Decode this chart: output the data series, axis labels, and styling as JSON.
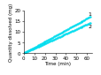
{
  "title": "",
  "xlabel": "Time (min)",
  "ylabel": "Quantity dissolved (mg)",
  "xlim": [
    0,
    65
  ],
  "ylim": [
    0,
    20
  ],
  "xticks": [
    0,
    10,
    20,
    30,
    40,
    50,
    60
  ],
  "yticks": [
    0,
    5,
    10,
    15,
    20
  ],
  "line1_label": "1",
  "line2_label": "2",
  "line1_slope": 0.27,
  "line2_slope": 0.225,
  "line_color": "#00ddee",
  "line_width": 0.7,
  "markersize": 1.2,
  "bg_color": "#ffffff",
  "tick_fontsize": 4,
  "label_fontsize": 4,
  "annot_fontsize": 4.5
}
